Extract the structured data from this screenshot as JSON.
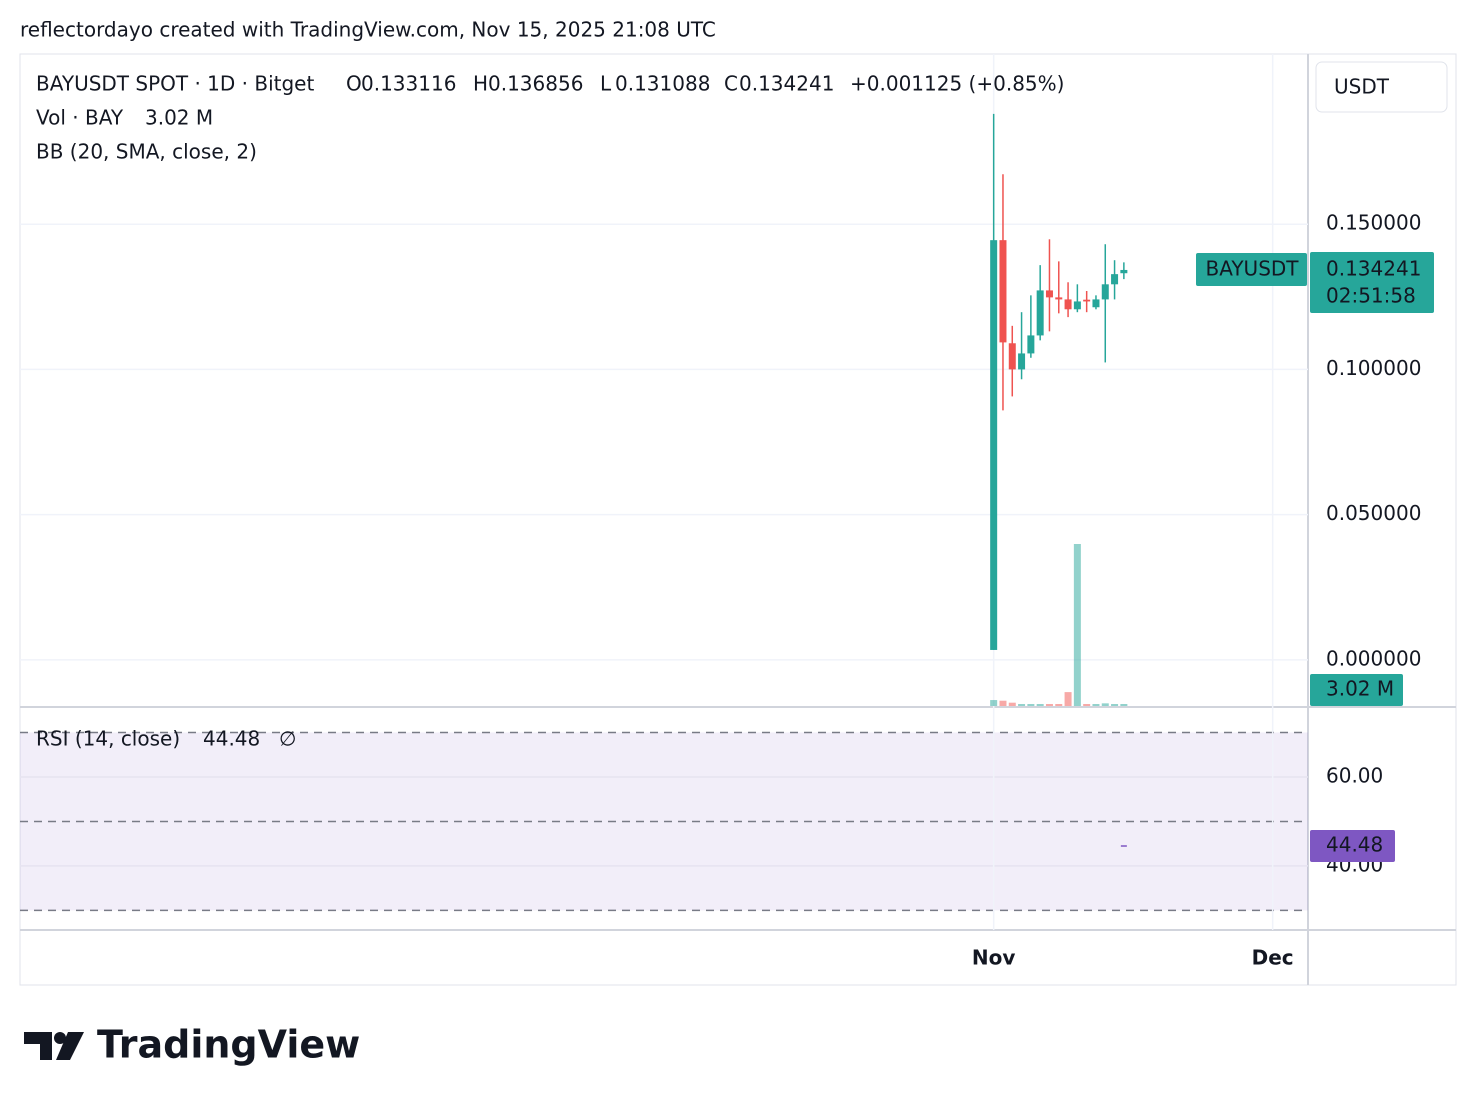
{
  "header": "reflectordayo created with TradingView.com, Nov 15, 2025 21:08 UTC",
  "brand": "TradingView",
  "chart_data": {
    "type": "candlestick",
    "symbol": "BAYUSDT SPOT · 1D · Bitget",
    "ohlc_labels": [
      "O",
      "H",
      "L",
      "C"
    ],
    "change": "+0.001125 (+0.85%)",
    "currency": "USDT",
    "ticker": "BAYUSDT",
    "countdown": "02:51:58",
    "indicator": "BB (20, SMA, close, 2)",
    "x": [
      0,
      1,
      2,
      3,
      4,
      5,
      6,
      7,
      8,
      9,
      10,
      11,
      12,
      13,
      14
    ],
    "open": [
      0.0034,
      0.1445,
      0.109,
      0.1,
      0.1055,
      0.1117,
      0.1272,
      0.1248,
      0.1241,
      0.1207,
      0.124,
      0.1214,
      0.1241,
      0.1293,
      0.133116
    ],
    "high": [
      0.188,
      0.1672,
      0.115,
      0.1197,
      0.1255,
      0.1359,
      0.1448,
      0.1372,
      0.13,
      0.1293,
      0.127,
      0.1255,
      0.1431,
      0.1376,
      0.136856
    ],
    "low": [
      0.0034,
      0.0859,
      0.0907,
      0.0966,
      0.104,
      0.11,
      0.1131,
      0.1193,
      0.118,
      0.1197,
      0.1197,
      0.1207,
      0.1024,
      0.1241,
      0.131088
    ],
    "close": [
      0.1445,
      0.1093,
      0.1,
      0.1055,
      0.1117,
      0.1272,
      0.1248,
      0.1241,
      0.1207,
      0.1234,
      0.1234,
      0.1241,
      0.1293,
      0.1328,
      0.134241
    ],
    "up_color": "#26a69a",
    "down_color": "#ef5350",
    "xlim": [
      -104.7,
      33.8
    ],
    "xticks": [
      {
        "value": 0,
        "label": "Nov"
      },
      {
        "value": 30,
        "label": "Dec"
      }
    ],
    "ylim": [
      -0.0159,
      0.2086
    ],
    "yticks": [
      {
        "value": 0,
        "label": "0.000000"
      },
      {
        "value": 0.05,
        "label": "0.050000"
      },
      {
        "value": 0.1,
        "label": "0.100000"
      },
      {
        "value": 0.15,
        "label": "0.150000"
      }
    ],
    "grid": true,
    "volume": {
      "name": "Vol · BAY",
      "values": [
        9,
        8,
        5,
        3,
        3,
        3,
        3,
        3,
        21,
        245,
        3,
        3,
        4,
        3,
        3.02
      ],
      "value_labels": [
        null,
        null,
        null,
        null,
        null,
        null,
        null,
        null,
        null,
        null,
        null,
        null,
        null,
        null,
        "3.02 M"
      ]
    },
    "rsi": {
      "name": "RSI (14, close)",
      "hidden_marker": "∅",
      "color": "#7e57c2",
      "values": [
        null,
        null,
        null,
        null,
        null,
        null,
        null,
        null,
        null,
        null,
        null,
        null,
        null,
        null,
        44.48
      ],
      "ylim": [
        25.6,
        75.5
      ],
      "yticks": [
        {
          "value": 40,
          "label": "40.00"
        },
        {
          "value": 60,
          "label": "60.00"
        }
      ],
      "bands": [
        30,
        50,
        70
      ]
    }
  }
}
